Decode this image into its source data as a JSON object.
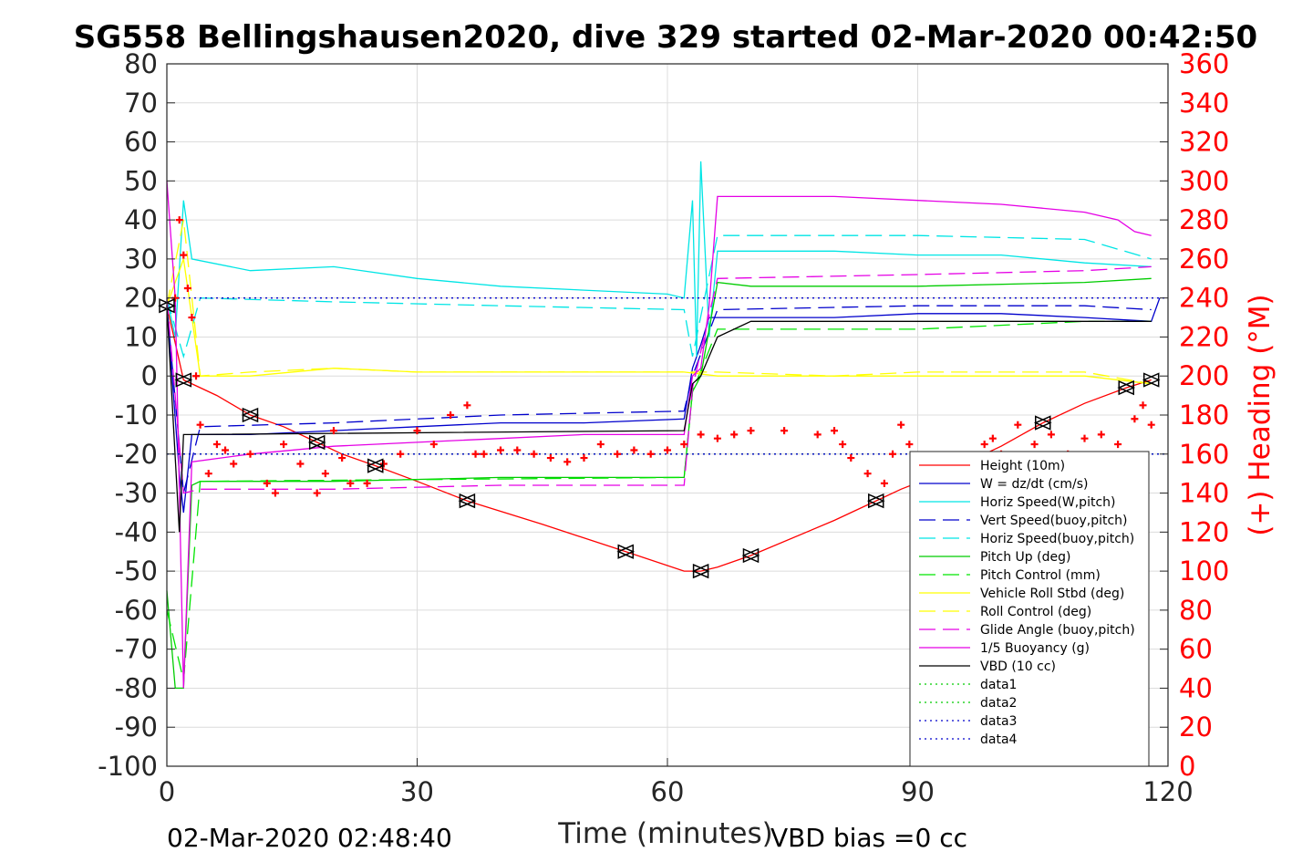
{
  "chart_data": {
    "type": "line",
    "title": "SG558 Bellingshausen2020, dive 329 started 02-Mar-2020 00:42:50",
    "xlabel": "Time (minutes)",
    "ylabel": "",
    "ylabel_right": "(+) Heading (°M)",
    "xlim": [
      0,
      120
    ],
    "ylim": [
      -100,
      80
    ],
    "ylim_right": [
      0,
      360
    ],
    "xticks": [
      "0",
      "30",
      "60",
      "90",
      "120"
    ],
    "yticks": [
      "80",
      "70",
      "60",
      "50",
      "40",
      "30",
      "20",
      "10",
      "0",
      "-10",
      "-20",
      "-30",
      "-40",
      "-50",
      "-60",
      "-70",
      "-80",
      "-90",
      "-100"
    ],
    "yticks_right": [
      "360",
      "340",
      "320",
      "300",
      "280",
      "260",
      "240",
      "220",
      "200",
      "180",
      "160",
      "140",
      "120",
      "100",
      "80",
      "60",
      "40",
      "20",
      "0"
    ],
    "grid": true,
    "legend_position": "bottom-right",
    "footer_left": "02-Mar-2020 02:48:40",
    "footer_right": "VBD bias =0 cc",
    "series": [
      {
        "name": "Height (10m)",
        "color": "#ff0000",
        "style": "solid",
        "markers": "triangles",
        "x": [
          0,
          2,
          6,
          10,
          14,
          18,
          21,
          25,
          30,
          36,
          45,
          55,
          62,
          64,
          66,
          70,
          80,
          85,
          88,
          94,
          100,
          105,
          110,
          115,
          118
        ],
        "y": [
          18,
          -1,
          -5,
          -10,
          -13,
          -17,
          -20,
          -23,
          -27,
          -32,
          -38,
          -45,
          -50,
          -50,
          -49,
          -46,
          -37,
          -32,
          -29,
          -24,
          -18,
          -12,
          -7,
          -3,
          -1
        ]
      },
      {
        "name": "W = dz/dt (cm/s)",
        "color": "#0000cc",
        "style": "solid",
        "x": [
          0,
          1.5,
          2,
          3,
          10,
          20,
          30,
          40,
          50,
          62,
          63,
          64,
          65,
          70,
          80,
          90,
          100,
          110,
          118,
          119
        ],
        "y": [
          18,
          -25,
          -35,
          -15,
          -15,
          -14,
          -13,
          -12,
          -12,
          -11,
          2,
          8,
          15,
          15,
          15,
          16,
          16,
          15,
          14,
          20
        ]
      },
      {
        "name": "Horiz Speed(W,pitch)",
        "color": "#00e5e5",
        "style": "solid",
        "x": [
          0,
          1,
          2,
          3,
          10,
          20,
          30,
          40,
          50,
          60,
          62,
          63,
          63.5,
          64,
          65,
          66,
          70,
          80,
          90,
          100,
          110,
          118
        ],
        "y": [
          20,
          10,
          45,
          30,
          27,
          28,
          25,
          23,
          22,
          21,
          20,
          45,
          5,
          55,
          10,
          32,
          32,
          32,
          31,
          31,
          29,
          28
        ]
      },
      {
        "name": "Vert Speed(buoy,pitch)",
        "color": "#0000cc",
        "style": "dashed",
        "x": [
          0,
          2,
          4,
          20,
          40,
          62,
          63,
          66,
          90,
          110,
          118
        ],
        "y": [
          18,
          -30,
          -13,
          -12,
          -10,
          -9,
          0,
          17,
          18,
          18,
          17
        ]
      },
      {
        "name": "Horiz Speed(buoy,pitch)",
        "color": "#00e5e5",
        "style": "dashed",
        "x": [
          0,
          2,
          4,
          20,
          40,
          62,
          63,
          66,
          90,
          110,
          118
        ],
        "y": [
          20,
          5,
          20,
          19,
          18,
          17,
          5,
          36,
          36,
          35,
          30
        ]
      },
      {
        "name": "Pitch Up (deg)",
        "color": "#00cc00",
        "style": "solid",
        "x": [
          0,
          1,
          2,
          3,
          4,
          20,
          40,
          62,
          63,
          64,
          66,
          70,
          90,
          110,
          118
        ],
        "y": [
          -55,
          -80,
          -80,
          -28,
          -27,
          -27,
          -26,
          -26,
          -4,
          0,
          24,
          23,
          23,
          24,
          25
        ]
      },
      {
        "name": "Pitch Control (mm)",
        "color": "#00e500",
        "style": "dashed",
        "x": [
          0,
          2,
          4,
          62,
          63,
          66,
          90,
          110,
          118
        ],
        "y": [
          -60,
          -78,
          -27,
          -26,
          -4,
          12,
          12,
          14,
          14
        ]
      },
      {
        "name": "Vehicle Roll Stbd (deg)",
        "color": "#ffff00",
        "style": "solid",
        "x": [
          0,
          2,
          4,
          10,
          20,
          30,
          40,
          50,
          62,
          66,
          80,
          90,
          100,
          110,
          118
        ],
        "y": [
          18,
          30,
          0,
          0,
          2,
          1,
          1,
          1,
          1,
          0,
          0,
          0,
          0,
          0,
          -2
        ]
      },
      {
        "name": "Roll Control (deg)",
        "color": "#ffff00",
        "style": "dashed",
        "x": [
          0,
          2,
          4,
          10,
          20,
          30,
          40,
          50,
          62,
          66,
          80,
          90,
          100,
          110,
          118
        ],
        "y": [
          18,
          40,
          0,
          1,
          2,
          1,
          1,
          1,
          1,
          1,
          0,
          1,
          1,
          1,
          -2
        ]
      },
      {
        "name": "Glide Angle (buoy,pitch)",
        "color": "#e500e5",
        "style": "dashed",
        "x": [
          0,
          2,
          4,
          20,
          40,
          62,
          63,
          66,
          90,
          110,
          118
        ],
        "y": [
          20,
          -30,
          -29,
          -29,
          -28,
          -28,
          -3,
          25,
          26,
          27,
          28
        ]
      },
      {
        "name": "1/5 Buoyancy (g)",
        "color": "#e500e5",
        "style": "solid",
        "x": [
          0,
          1,
          2,
          3,
          10,
          20,
          30,
          40,
          50,
          62,
          63,
          64,
          65,
          66,
          80,
          100,
          110,
          114,
          116,
          118
        ],
        "y": [
          50,
          20,
          -80,
          -22,
          -20,
          -18,
          -17,
          -16,
          -15,
          -15,
          0,
          2,
          18,
          46,
          46,
          44,
          42,
          40,
          37,
          36
        ]
      },
      {
        "name": "VBD (10 cc)",
        "color": "#000000",
        "style": "solid",
        "x": [
          0,
          1.5,
          2,
          3,
          62,
          63,
          64,
          66,
          70,
          100,
          118
        ],
        "y": [
          18,
          -40,
          -15,
          -15,
          -14,
          -2,
          0,
          10,
          14,
          14,
          14
        ]
      },
      {
        "name": "data1",
        "color": "#00cc00",
        "style": "dotted",
        "x": [
          0,
          120
        ],
        "y": [
          -20,
          -20
        ]
      },
      {
        "name": "data2",
        "color": "#00cc00",
        "style": "dotted",
        "x": [
          0,
          120
        ],
        "y": [
          -20,
          -20
        ]
      },
      {
        "name": "data3",
        "color": "#0000cc",
        "style": "dotted",
        "x": [
          0,
          120
        ],
        "y": [
          20,
          20
        ]
      },
      {
        "name": "data4",
        "color": "#0000cc",
        "style": "dotted",
        "x": [
          0,
          120
        ],
        "y": [
          -20,
          -20
        ]
      }
    ],
    "heading": {
      "color": "#ff0000",
      "marker": "+",
      "x": [
        1,
        1.5,
        2,
        2.5,
        3,
        3.5,
        4,
        5,
        6,
        7,
        8,
        10,
        12,
        13,
        14,
        16,
        18,
        19,
        20,
        21,
        22,
        24,
        26,
        28,
        30,
        32,
        34,
        36,
        37,
        38,
        40,
        42,
        44,
        46,
        48,
        50,
        52,
        54,
        56,
        58,
        60,
        62,
        64,
        66,
        68,
        70,
        74,
        78,
        80,
        81,
        82,
        84,
        86,
        87,
        88,
        89,
        90,
        94,
        98,
        99,
        100,
        102,
        104,
        106,
        108,
        110,
        112,
        114,
        116,
        117,
        118
      ],
      "y": [
        240,
        280,
        262,
        245,
        230,
        200,
        175,
        150,
        165,
        162,
        155,
        160,
        145,
        140,
        165,
        155,
        140,
        150,
        172,
        158,
        145,
        145,
        155,
        160,
        172,
        165,
        180,
        185,
        160,
        160,
        162,
        162,
        160,
        158,
        156,
        158,
        165,
        160,
        162,
        160,
        162,
        165,
        170,
        168,
        170,
        172,
        172,
        170,
        172,
        165,
        158,
        150,
        145,
        160,
        175,
        165,
        155,
        158,
        165,
        168,
        160,
        175,
        165,
        170,
        160,
        168,
        170,
        165,
        178,
        185,
        175
      ]
    }
  }
}
